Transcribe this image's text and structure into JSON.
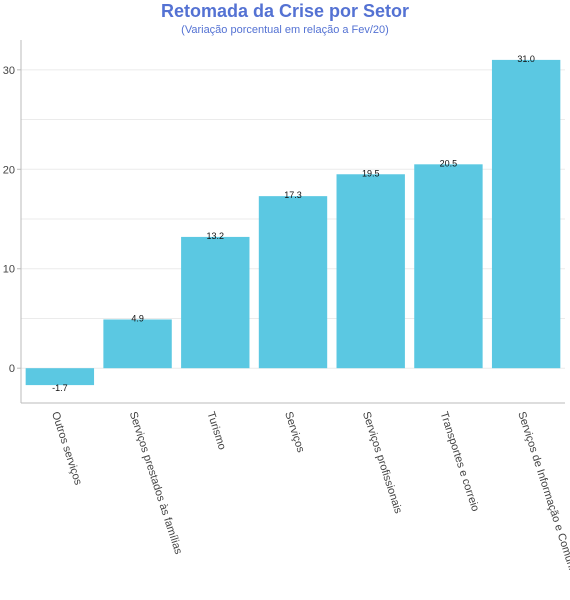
{
  "chart_data": {
    "type": "bar",
    "title": "Retomada da Crise por Setor",
    "subtitle": "(Variação porcentual em relação a Fev/20)",
    "categories": [
      "Outros serviços",
      "Serviços prestados às famílias",
      "Turismo",
      "Serviços",
      "Serviços profissionais",
      "Transportes e correio",
      "Serviços de Informação e Comunicação"
    ],
    "values": [
      -1.7,
      4.9,
      13.2,
      17.3,
      19.5,
      20.5,
      31.0
    ],
    "data_labels": [
      "-1.7",
      "4.9",
      "13.2",
      "17.3",
      "19.5",
      "20.5",
      "31.0"
    ],
    "yticks": [
      0,
      10,
      20,
      30
    ],
    "ytick_labels": [
      "0",
      "10",
      "20",
      "30"
    ],
    "ylim": [
      -3.5,
      33
    ],
    "xlabel": "",
    "ylabel": "",
    "grid": true,
    "legend": "none",
    "colors": {
      "bar": "#5bc8e2",
      "title": "#5472d3",
      "grid": "#ebebeb",
      "axis": "#bbbbbb"
    }
  }
}
